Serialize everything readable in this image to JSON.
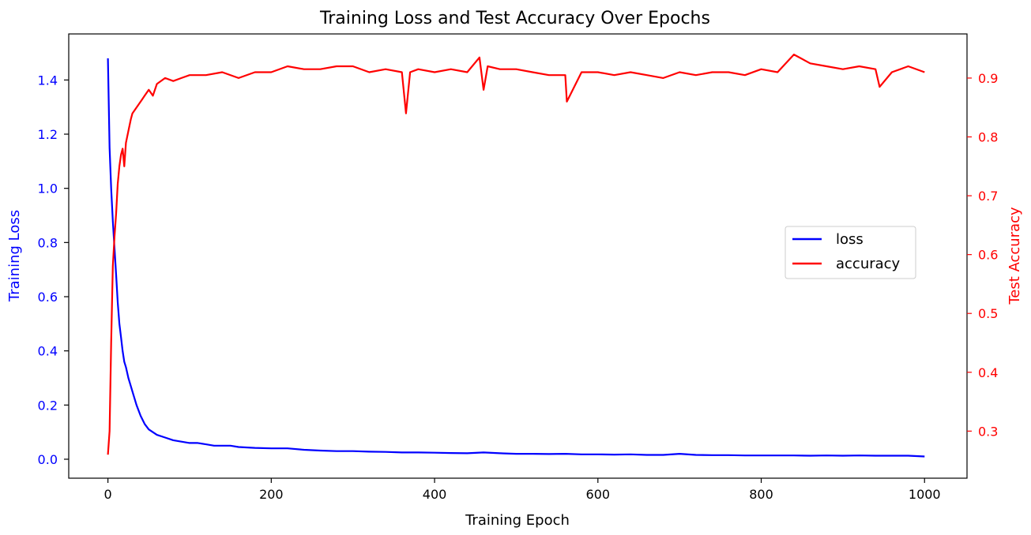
{
  "chart_data": {
    "type": "line",
    "title": "Training Loss and Test Accuracy Over Epochs",
    "xlabel": "Training Epoch",
    "xlim": [
      -48,
      1052
    ],
    "xticks": [
      0,
      200,
      400,
      600,
      800,
      1000
    ],
    "grid": false,
    "legend_position": "center-right",
    "left_axis": {
      "label": "Training Loss",
      "color": "#0000ff",
      "ylim": [
        -0.07,
        1.57
      ],
      "ticks": [
        0.0,
        0.2,
        0.4,
        0.6,
        0.8,
        1.0,
        1.2,
        1.4
      ],
      "tick_labels": [
        "0.0",
        "0.2",
        "0.4",
        "0.6",
        "0.8",
        "1.0",
        "1.2",
        "1.4"
      ]
    },
    "right_axis": {
      "label": "Test Accuracy",
      "color": "#ff0000",
      "ylim": [
        0.22,
        0.975
      ],
      "ticks": [
        0.3,
        0.4,
        0.5,
        0.6,
        0.7,
        0.8,
        0.9
      ],
      "tick_labels": [
        "0.3",
        "0.4",
        "0.5",
        "0.6",
        "0.7",
        "0.8",
        "0.9"
      ]
    },
    "series": [
      {
        "name": "loss",
        "axis": "left",
        "color": "#0000ff",
        "x": [
          0,
          2,
          4,
          6,
          8,
          10,
          12,
          14,
          16,
          18,
          20,
          22,
          25,
          28,
          30,
          35,
          40,
          45,
          50,
          60,
          70,
          80,
          90,
          100,
          110,
          120,
          130,
          140,
          150,
          160,
          180,
          200,
          220,
          240,
          260,
          280,
          300,
          320,
          340,
          360,
          380,
          400,
          420,
          440,
          460,
          480,
          500,
          520,
          540,
          560,
          580,
          600,
          620,
          640,
          660,
          680,
          700,
          720,
          740,
          760,
          780,
          800,
          820,
          840,
          860,
          880,
          900,
          920,
          940,
          960,
          980,
          1000
        ],
        "y": [
          1.48,
          1.15,
          1.0,
          0.88,
          0.78,
          0.68,
          0.58,
          0.5,
          0.45,
          0.4,
          0.36,
          0.34,
          0.3,
          0.27,
          0.25,
          0.2,
          0.16,
          0.13,
          0.11,
          0.09,
          0.08,
          0.07,
          0.065,
          0.06,
          0.06,
          0.055,
          0.05,
          0.05,
          0.05,
          0.045,
          0.042,
          0.04,
          0.04,
          0.035,
          0.032,
          0.03,
          0.03,
          0.028,
          0.027,
          0.025,
          0.025,
          0.024,
          0.023,
          0.022,
          0.025,
          0.022,
          0.02,
          0.02,
          0.019,
          0.02,
          0.018,
          0.018,
          0.017,
          0.018,
          0.016,
          0.016,
          0.02,
          0.016,
          0.015,
          0.015,
          0.014,
          0.014,
          0.014,
          0.014,
          0.013,
          0.014,
          0.013,
          0.014,
          0.013,
          0.013,
          0.013,
          0.01
        ]
      },
      {
        "name": "accuracy",
        "axis": "right",
        "color": "#ff0000",
        "x": [
          0,
          2,
          4,
          6,
          8,
          10,
          12,
          14,
          16,
          18,
          20,
          22,
          25,
          28,
          30,
          35,
          40,
          45,
          50,
          55,
          60,
          70,
          80,
          90,
          100,
          120,
          140,
          160,
          180,
          200,
          220,
          240,
          260,
          280,
          300,
          320,
          340,
          360,
          365,
          370,
          380,
          400,
          420,
          440,
          455,
          460,
          465,
          480,
          500,
          520,
          540,
          560,
          562,
          580,
          600,
          620,
          640,
          660,
          680,
          700,
          720,
          740,
          760,
          780,
          800,
          820,
          840,
          860,
          880,
          900,
          920,
          940,
          945,
          960,
          980,
          1000
        ],
        "y": [
          0.26,
          0.3,
          0.45,
          0.58,
          0.63,
          0.67,
          0.72,
          0.75,
          0.77,
          0.78,
          0.75,
          0.79,
          0.81,
          0.83,
          0.84,
          0.85,
          0.86,
          0.87,
          0.88,
          0.87,
          0.89,
          0.9,
          0.895,
          0.9,
          0.905,
          0.905,
          0.91,
          0.9,
          0.91,
          0.91,
          0.92,
          0.915,
          0.915,
          0.92,
          0.92,
          0.91,
          0.915,
          0.91,
          0.84,
          0.91,
          0.915,
          0.91,
          0.915,
          0.91,
          0.935,
          0.88,
          0.92,
          0.915,
          0.915,
          0.91,
          0.905,
          0.905,
          0.86,
          0.91,
          0.91,
          0.905,
          0.91,
          0.905,
          0.9,
          0.91,
          0.905,
          0.91,
          0.91,
          0.905,
          0.915,
          0.91,
          0.94,
          0.925,
          0.92,
          0.915,
          0.92,
          0.915,
          0.885,
          0.91,
          0.92,
          0.91
        ]
      }
    ]
  }
}
